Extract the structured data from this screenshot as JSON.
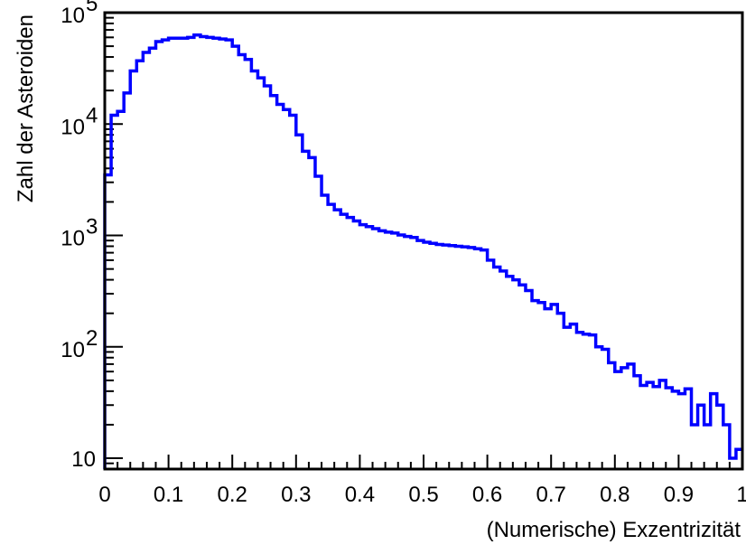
{
  "chart_data": {
    "type": "histogram",
    "xlabel": "(Numerische) Exzentrizität",
    "ylabel": "Zahl der Asteroiden",
    "xlim": [
      0,
      1
    ],
    "ylim": [
      8,
      100000
    ],
    "yscale": "log",
    "grid": false,
    "legend": "none",
    "line_color": "#0000ff",
    "x_ticks": [
      {
        "value": 0,
        "label": "0"
      },
      {
        "value": 0.1,
        "label": "0.1"
      },
      {
        "value": 0.2,
        "label": "0.2"
      },
      {
        "value": 0.3,
        "label": "0.3"
      },
      {
        "value": 0.4,
        "label": "0.4"
      },
      {
        "value": 0.5,
        "label": "0.5"
      },
      {
        "value": 0.6,
        "label": "0.6"
      },
      {
        "value": 0.7,
        "label": "0.7"
      },
      {
        "value": 0.8,
        "label": "0.8"
      },
      {
        "value": 0.9,
        "label": "0.9"
      },
      {
        "value": 1,
        "label": "1"
      }
    ],
    "y_ticks": [
      {
        "value": 10,
        "base": "10",
        "exp": ""
      },
      {
        "value": 100,
        "base": "10",
        "exp": "2"
      },
      {
        "value": 1000,
        "base": "10",
        "exp": "3"
      },
      {
        "value": 10000,
        "base": "10",
        "exp": "4"
      },
      {
        "value": 100000,
        "base": "10",
        "exp": "5"
      }
    ],
    "bin_width": 0.01,
    "bin_start": 0,
    "counts": [
      3500,
      12000,
      13000,
      19000,
      30000,
      37000,
      44000,
      48000,
      55000,
      57000,
      59000,
      59000,
      59000,
      60000,
      63000,
      61000,
      60000,
      59000,
      58000,
      57000,
      50000,
      42000,
      38000,
      30000,
      26000,
      22000,
      18000,
      15000,
      13500,
      12000,
      8000,
      5700,
      5000,
      3400,
      2300,
      1900,
      1700,
      1550,
      1450,
      1350,
      1250,
      1200,
      1150,
      1100,
      1070,
      1050,
      1010,
      980,
      960,
      900,
      870,
      850,
      830,
      820,
      810,
      800,
      790,
      780,
      760,
      740,
      600,
      520,
      480,
      430,
      400,
      360,
      320,
      260,
      250,
      220,
      240,
      200,
      150,
      160,
      135,
      130,
      128,
      100,
      95,
      72,
      60,
      65,
      70,
      55,
      45,
      48,
      44,
      50,
      43,
      40,
      38,
      42,
      20,
      30,
      20,
      38,
      30,
      20,
      10,
      12
    ]
  }
}
